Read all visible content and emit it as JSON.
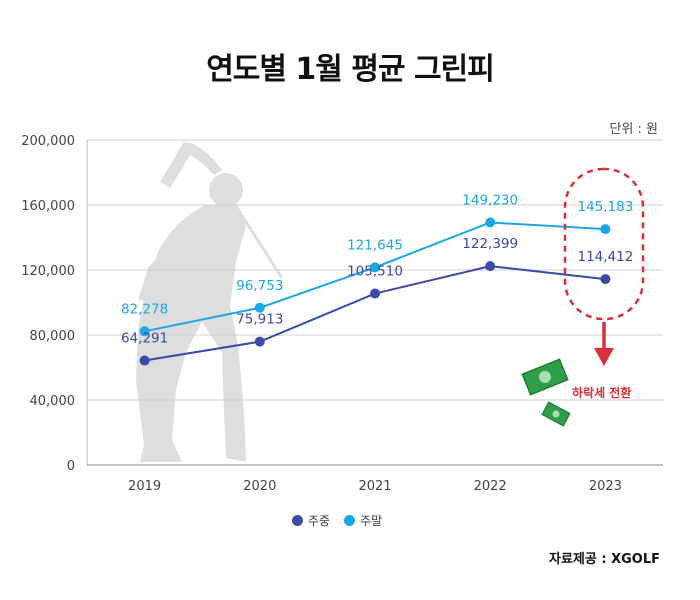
{
  "title": "연도별 1월 평균 그린피",
  "unit": "단위 : 원",
  "source": "자료제공 : XGOLF",
  "annotation": "하락세 전환",
  "chart_data": {
    "type": "line",
    "categories": [
      "2019",
      "2020",
      "2021",
      "2022",
      "2023"
    ],
    "ylim": [
      0,
      200000
    ],
    "yticks": [
      "0",
      "40,000",
      "80,000",
      "120,000",
      "160,000",
      "200,000"
    ],
    "ytick_values": [
      0,
      40000,
      80000,
      120000,
      160000,
      200000
    ],
    "grid": true,
    "legend_position": "bottom-center",
    "series": [
      {
        "name": "주중",
        "color": "#3a4aa6",
        "values": [
          64291,
          75913,
          105510,
          122399,
          114412
        ],
        "labels": [
          "64,291",
          "75,913",
          "105,510",
          "122,399",
          "114,412"
        ]
      },
      {
        "name": "주말",
        "color": "#1aa7e8",
        "values": [
          82278,
          96753,
          121645,
          149230,
          145183
        ],
        "labels": [
          "82,278",
          "96,753",
          "121,645",
          "149,230",
          "145,183"
        ]
      }
    ]
  }
}
